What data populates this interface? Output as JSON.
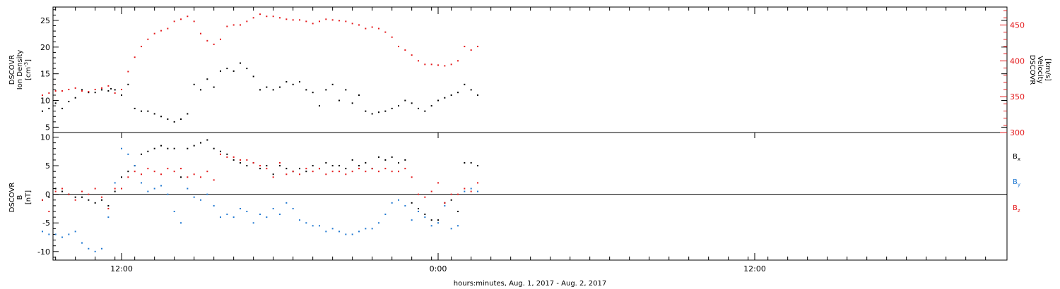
{
  "chart_data": [
    {
      "type": "scatter",
      "panel": "top",
      "ylabel_lines": [
        "DSCOVR",
        "Ion Density",
        "[cm",
        "-3",
        "]"
      ],
      "ylabel_right_lines": [
        "DSCOVR",
        "Velocity",
        "[km/s]"
      ],
      "ylim": [
        4,
        27.5
      ],
      "ylim_right": [
        300,
        475
      ],
      "y_ticks": [
        "5",
        "10",
        "15",
        "20",
        "25"
      ],
      "y_ticks_right": [
        "300",
        "350",
        "400",
        "450"
      ],
      "grid": false,
      "series": [
        {
          "axis": "left",
          "color": "#000000",
          "x": [
            0,
            0.5,
            1,
            1.5,
            2,
            2.5,
            3,
            3.5,
            4,
            4.5,
            5,
            5.2,
            5.5,
            6,
            6.5,
            7,
            7.5,
            8,
            8.5,
            9,
            9.5,
            10,
            10.5,
            11,
            11.5,
            12,
            12.5,
            13,
            13.5,
            14,
            14.5,
            15,
            15.5,
            16,
            16.5,
            17,
            17.5,
            18,
            18.5,
            19,
            19.5,
            20,
            20.5,
            21,
            21.5,
            22,
            22.5,
            23,
            23.5,
            24,
            24.5,
            25,
            25.5,
            26,
            26.5,
            27,
            27.5,
            28,
            28.5,
            29,
            29.5,
            30,
            30.5,
            31,
            31.5,
            32,
            32.5,
            33
          ],
          "values": [
            8.0,
            8.5,
            9.5,
            8.5,
            9.8,
            10.5,
            12.0,
            11.5,
            11.5,
            12.0,
            11.8,
            12.2,
            12.0,
            11.0,
            13.0,
            8.5,
            8.0,
            8.0,
            7.5,
            7.0,
            6.5,
            6.0,
            6.5,
            7.5,
            13.0,
            12.0,
            14.0,
            12.5,
            15.5,
            16.0,
            15.5,
            17.0,
            16.0,
            14.5,
            12.0,
            12.5,
            12.0,
            12.5,
            13.5,
            13.0,
            13.5,
            12.0,
            11.5,
            9.0,
            12.0,
            13.0,
            10.0,
            12.0,
            9.5,
            11.0,
            8.0,
            7.5,
            7.8,
            8.0,
            8.5,
            9.0,
            10.0,
            9.5,
            8.5,
            8.0,
            9.0,
            10.0,
            10.5,
            11.0,
            11.5,
            13.0,
            12.0,
            11.0
          ]
        },
        {
          "axis": "right",
          "color": "#e41a1c",
          "x": [
            0,
            0.5,
            1,
            1.5,
            2,
            2.5,
            3,
            3.5,
            4,
            4.5,
            5,
            5.5,
            6,
            6.5,
            7,
            7.5,
            8,
            8.5,
            9,
            9.5,
            10,
            10.5,
            11,
            11.5,
            12,
            12.5,
            13,
            13.5,
            14,
            14.5,
            15,
            15.5,
            16,
            16.5,
            17,
            17.5,
            18,
            18.5,
            19,
            19.5,
            20,
            20.5,
            21,
            21.5,
            22,
            22.5,
            23,
            23.5,
            24,
            24.5,
            25,
            25.5,
            26,
            26.5,
            27,
            27.5,
            28,
            28.5,
            29,
            29.5,
            30,
            30.5,
            31,
            31.5,
            32,
            32.5,
            33
          ],
          "values": [
            352,
            355,
            358,
            358,
            360,
            362,
            358,
            357,
            360,
            362,
            365,
            355,
            360,
            385,
            405,
            420,
            430,
            438,
            442,
            445,
            455,
            458,
            462,
            455,
            438,
            428,
            423,
            430,
            448,
            450,
            450,
            455,
            460,
            465,
            462,
            462,
            460,
            458,
            457,
            457,
            455,
            452,
            455,
            458,
            457,
            456,
            455,
            452,
            450,
            445,
            447,
            445,
            440,
            433,
            420,
            415,
            408,
            400,
            395,
            395,
            394,
            393,
            395,
            400,
            420,
            415,
            420
          ]
        }
      ]
    },
    {
      "type": "scatter",
      "panel": "bottom",
      "ylabel_lines": [
        "DSCOVR",
        "B",
        "[nT]"
      ],
      "ylim": [
        -11.5,
        10.8
      ],
      "y_ticks": [
        "-10",
        "-5",
        "0",
        "5",
        "10"
      ],
      "xlabel": "hours:minutes, Aug.  1, 2017 - Aug.  2, 2017",
      "x_ticks": [
        "12:00",
        "0:00",
        "12:00"
      ],
      "grid": false,
      "legend": [
        "B",
        "B",
        "B"
      ],
      "legend_subs": [
        "x",
        "y",
        "z"
      ],
      "series": [
        {
          "color": "#000000",
          "x": [
            0,
            0.5,
            1,
            1.5,
            2,
            2.5,
            3,
            3.5,
            4,
            4.5,
            5,
            5.5,
            6,
            6.5,
            7,
            7.5,
            8,
            8.5,
            9,
            9.5,
            10,
            10.5,
            11,
            11.5,
            12,
            12.5,
            13,
            13.5,
            14,
            14.5,
            15,
            15.5,
            16,
            16.5,
            17,
            17.5,
            18,
            18.5,
            19,
            19.5,
            20,
            20.5,
            21,
            21.5,
            22,
            22.5,
            23,
            23.5,
            24,
            24.5,
            25,
            25.5,
            26,
            26.5,
            27,
            27.5,
            28,
            28.5,
            29,
            29.5,
            30,
            30.5,
            31,
            31.5,
            32,
            32.5,
            33
          ],
          "values": [
            -1.0,
            -0.5,
            1.0,
            0.5,
            0.0,
            -0.5,
            -0.5,
            -1.0,
            -1.5,
            -1.0,
            -2.0,
            0.5,
            3.0,
            4.0,
            5.0,
            7.0,
            7.5,
            8.0,
            8.5,
            8.0,
            8.0,
            3.0,
            8.0,
            8.5,
            9.0,
            9.5,
            8.0,
            7.5,
            7.0,
            6.0,
            5.5,
            5.0,
            5.5,
            4.5,
            5.0,
            3.5,
            5.0,
            4.5,
            4.0,
            4.5,
            4.0,
            5.0,
            4.5,
            5.5,
            5.0,
            5.0,
            4.5,
            6.0,
            5.0,
            5.5,
            4.5,
            6.5,
            6.0,
            6.5,
            5.5,
            6.0,
            -1.5,
            -2.5,
            -3.5,
            -4.5,
            -4.5,
            -1.5,
            -1.0,
            -3.0,
            5.5,
            5.5,
            5.0
          ]
        },
        {
          "color": "#1f78d1",
          "x": [
            0,
            0.5,
            1,
            1.5,
            2,
            2.5,
            3,
            3.5,
            4,
            4.5,
            5,
            5.5,
            6,
            6.5,
            7,
            7.5,
            8,
            8.5,
            9,
            9.5,
            10,
            10.5,
            11,
            11.5,
            12,
            12.5,
            13,
            13.5,
            14,
            14.5,
            15,
            15.5,
            16,
            16.5,
            17,
            17.5,
            18,
            18.5,
            19,
            19.5,
            20,
            20.5,
            21,
            21.5,
            22,
            22.5,
            23,
            23.5,
            24,
            24.5,
            25,
            25.5,
            26,
            26.5,
            27,
            27.5,
            28,
            28.5,
            29,
            29.5,
            30,
            30.5,
            31,
            31.5,
            32,
            32.5,
            33
          ],
          "values": [
            -6.5,
            -7.0,
            -7.0,
            -7.5,
            -7.0,
            -6.5,
            -8.5,
            -9.5,
            -10.0,
            -9.5,
            -4.0,
            2.0,
            8.0,
            7.0,
            5.0,
            2.0,
            0.5,
            1.0,
            1.5,
            0.0,
            -3.0,
            -5.0,
            1.0,
            -0.5,
            -1.0,
            0.0,
            -2.0,
            -4.0,
            -3.5,
            -4.0,
            -2.5,
            -3.0,
            -5.0,
            -3.5,
            -4.0,
            -2.5,
            -3.5,
            -1.5,
            -2.5,
            -4.5,
            -5.0,
            -5.5,
            -5.5,
            -6.5,
            -6.0,
            -6.5,
            -7.0,
            -7.0,
            -6.5,
            -6.0,
            -6.0,
            -5.0,
            -3.5,
            -1.5,
            -1.0,
            -2.0,
            -4.5,
            -3.0,
            -4.0,
            -5.5,
            -5.0,
            -2.0,
            -6.0,
            -5.5,
            0.5,
            1.0,
            0.5
          ]
        },
        {
          "color": "#e41a1c",
          "x": [
            0,
            0.5,
            1,
            1.5,
            2,
            2.5,
            3,
            3.5,
            4,
            4.5,
            5,
            5.5,
            6,
            6.5,
            7,
            7.5,
            8,
            8.5,
            9,
            9.5,
            10,
            10.5,
            11,
            11.5,
            12,
            12.5,
            13,
            13.5,
            14,
            14.5,
            15,
            15.5,
            16,
            16.5,
            17,
            17.5,
            18,
            18.5,
            19,
            19.5,
            20,
            20.5,
            21,
            21.5,
            22,
            22.5,
            23,
            23.5,
            24,
            24.5,
            25,
            25.5,
            26,
            26.5,
            27,
            27.5,
            28,
            28.5,
            29,
            29.5,
            30,
            30.5,
            31,
            31.5,
            32,
            32.5,
            33
          ],
          "values": [
            -1.0,
            -3.0,
            0.5,
            1.0,
            0.0,
            -1.0,
            0.5,
            0.0,
            1.0,
            -0.5,
            -2.5,
            1.0,
            1.0,
            3.0,
            4.0,
            3.5,
            4.5,
            4.0,
            3.5,
            4.5,
            4.0,
            4.5,
            3.0,
            3.5,
            3.0,
            4.0,
            2.5,
            7.0,
            6.5,
            6.5,
            6.0,
            6.0,
            5.5,
            5.0,
            4.5,
            3.0,
            5.5,
            3.5,
            4.0,
            3.5,
            4.5,
            4.0,
            4.5,
            3.5,
            4.0,
            4.0,
            3.5,
            4.0,
            4.5,
            4.0,
            4.5,
            4.0,
            4.5,
            4.0,
            4.0,
            4.5,
            3.0,
            0.0,
            -0.5,
            0.5,
            2.0,
            -1.5,
            0.0,
            0.0,
            1.0,
            0.5,
            2.0
          ]
        }
      ]
    }
  ]
}
